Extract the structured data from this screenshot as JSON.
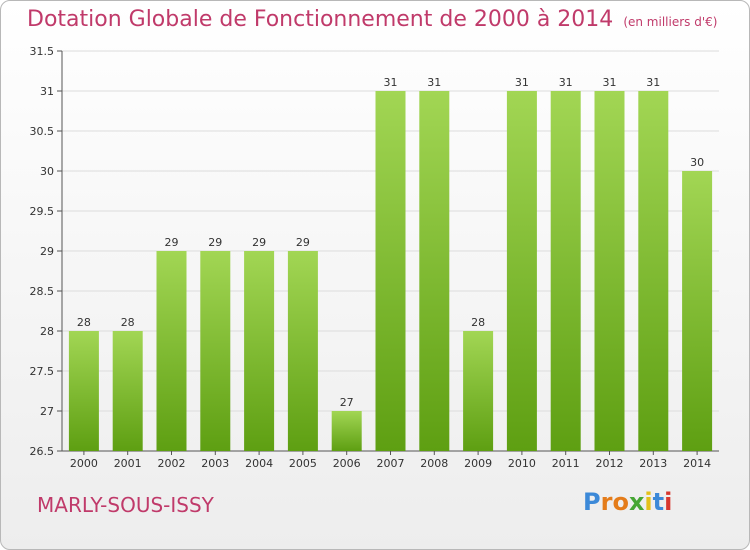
{
  "chart_data": {
    "type": "bar",
    "title": "Dotation Globale de Fonctionnement de 2000 à 2014",
    "unit_label": "(en milliers d'€)",
    "categories": [
      "2000",
      "2001",
      "2002",
      "2003",
      "2004",
      "2005",
      "2006",
      "2007",
      "2008",
      "2009",
      "2010",
      "2011",
      "2012",
      "2013",
      "2014"
    ],
    "values": [
      28,
      28,
      29,
      29,
      29,
      29,
      27,
      31,
      31,
      28,
      31,
      31,
      31,
      31,
      30
    ],
    "value_labels": [
      "28",
      "28",
      "29",
      "29",
      "29",
      "29",
      "27",
      "31",
      "31",
      "28",
      "31",
      "31",
      "31",
      "31",
      "30"
    ],
    "ylim": [
      26.5,
      31.5
    ],
    "yticks": [
      "26.5",
      "27",
      "27.5",
      "28",
      "28.5",
      "29",
      "29.5",
      "30",
      "30.5",
      "31",
      "31.5"
    ],
    "grid": true,
    "bar_color": "#8cc63f"
  },
  "footer": {
    "city": "MARLY-SOUS-ISSY",
    "logo_letters": [
      "P",
      "r",
      "o",
      "x",
      "i",
      "t",
      "i"
    ]
  }
}
